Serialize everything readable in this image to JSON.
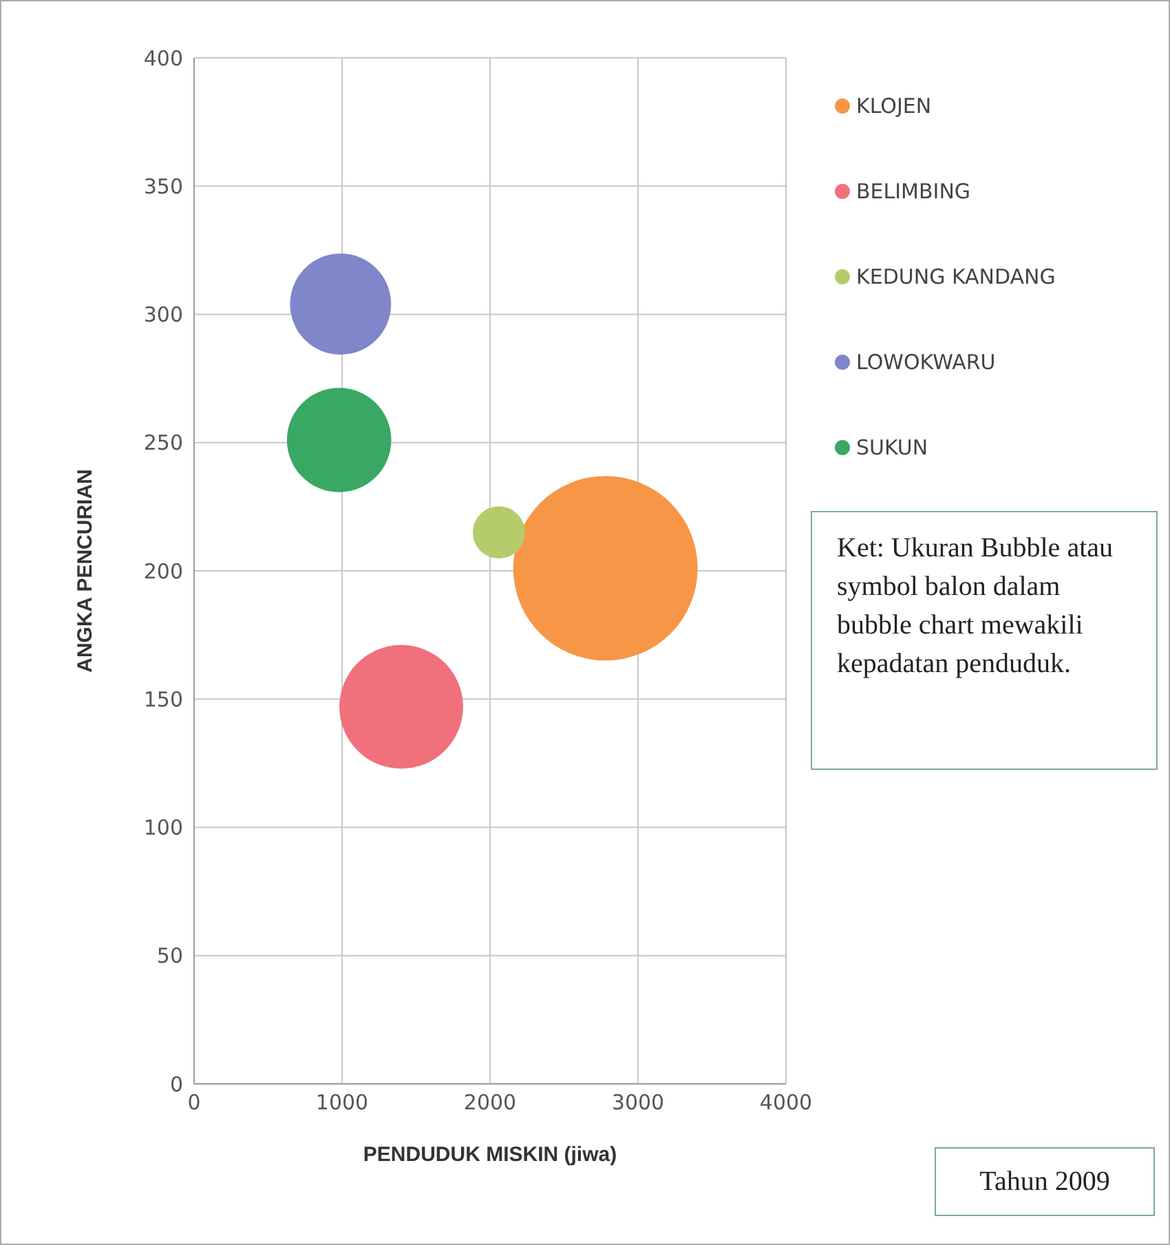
{
  "chart_data": {
    "type": "bubble",
    "xlabel": "PENDUDUK MISKIN (jiwa)",
    "ylabel": "ANGKA PENCURIAN",
    "xlim": [
      0,
      4000
    ],
    "xticks": [
      0,
      1000,
      2000,
      3000,
      4000
    ],
    "ylim": [
      0,
      400
    ],
    "yticks": [
      0,
      50,
      100,
      150,
      200,
      250,
      300,
      350,
      400
    ],
    "grid": true,
    "legend": "top right",
    "series": [
      {
        "name": "KLOJEN",
        "color": "#f79646",
        "x": [
          2780
        ],
        "values": [
          201
        ],
        "sizes": [
          1
        ]
      },
      {
        "name": "BELIMBING",
        "color": "#f0717b",
        "x": [
          1400
        ],
        "values": [
          147
        ],
        "sizes": [
          0.45
        ]
      },
      {
        "name": "KEDUNG KANDANG",
        "color": "#b5cc6a",
        "x": [
          2060
        ],
        "values": [
          215
        ],
        "sizes": [
          0.08
        ]
      },
      {
        "name": "LOWOKWARU",
        "color": "#7f86c9",
        "x": [
          990
        ],
        "values": [
          304
        ],
        "sizes": [
          0.3
        ]
      },
      {
        "name": "SUKUN",
        "color": "#3aa765",
        "x": [
          980
        ],
        "values": [
          251
        ],
        "sizes": [
          0.32
        ]
      }
    ],
    "annotations": [
      "Ket: Ukuran Bubble atau symbol balon dalam bubble chart mewakili kepadatan penduduk.",
      "Tahun 2009"
    ]
  }
}
